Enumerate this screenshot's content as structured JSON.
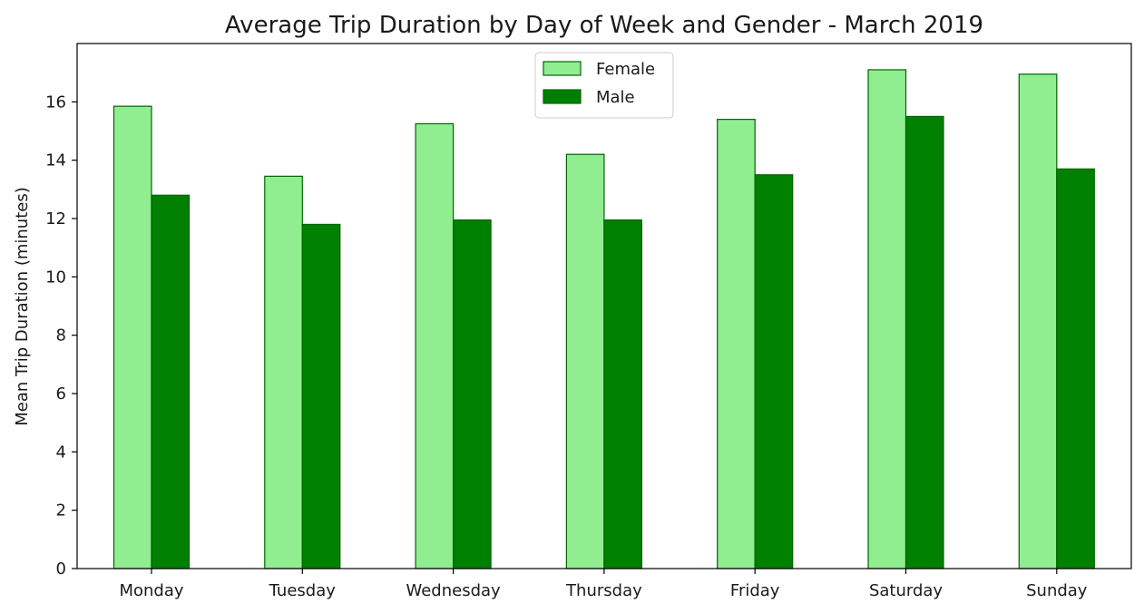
{
  "chart_data": {
    "type": "bar",
    "title": "Average Trip Duration by Day of Week and Gender - March 2019",
    "xlabel": "",
    "ylabel": "Mean Trip Duration (minutes)",
    "categories": [
      "Monday",
      "Tuesday",
      "Wednesday",
      "Thursday",
      "Friday",
      "Saturday",
      "Sunday"
    ],
    "series": [
      {
        "name": "Female",
        "color": "#90ee90",
        "edge_color": "#006400",
        "values": [
          15.85,
          13.45,
          15.25,
          14.2,
          15.4,
          17.1,
          16.95
        ]
      },
      {
        "name": "Male",
        "color": "#008000",
        "edge_color": "#006400",
        "values": [
          12.8,
          11.8,
          11.95,
          11.95,
          13.5,
          15.5,
          13.7
        ]
      }
    ],
    "ylim": [
      0,
      18
    ],
    "yticks": [
      0,
      2,
      4,
      6,
      8,
      10,
      12,
      14,
      16
    ],
    "grid": false,
    "legend_position": "top-center"
  }
}
